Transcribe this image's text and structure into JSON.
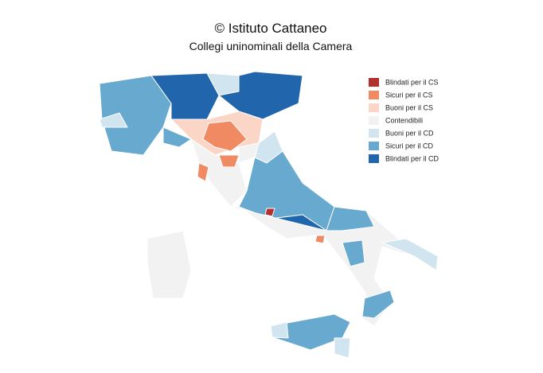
{
  "header": {
    "title": "© Istituto Cattaneo",
    "subtitle": "Collegi uninominali della Camera"
  },
  "legend": {
    "items": [
      {
        "label": "Blindati per il CS",
        "color": "#b2302e"
      },
      {
        "label": "Sicuri per il CS",
        "color": "#ef8a62"
      },
      {
        "label": "Buoni per il CS",
        "color": "#fbd5c5"
      },
      {
        "label": "Contendibili",
        "color": "#f2f2f2"
      },
      {
        "label": "Buoni per il CD",
        "color": "#d1e5f0"
      },
      {
        "label": "Sicuri per il CD",
        "color": "#67a9cf"
      },
      {
        "label": "Blindati per il CD",
        "color": "#2166ac"
      }
    ]
  }
}
